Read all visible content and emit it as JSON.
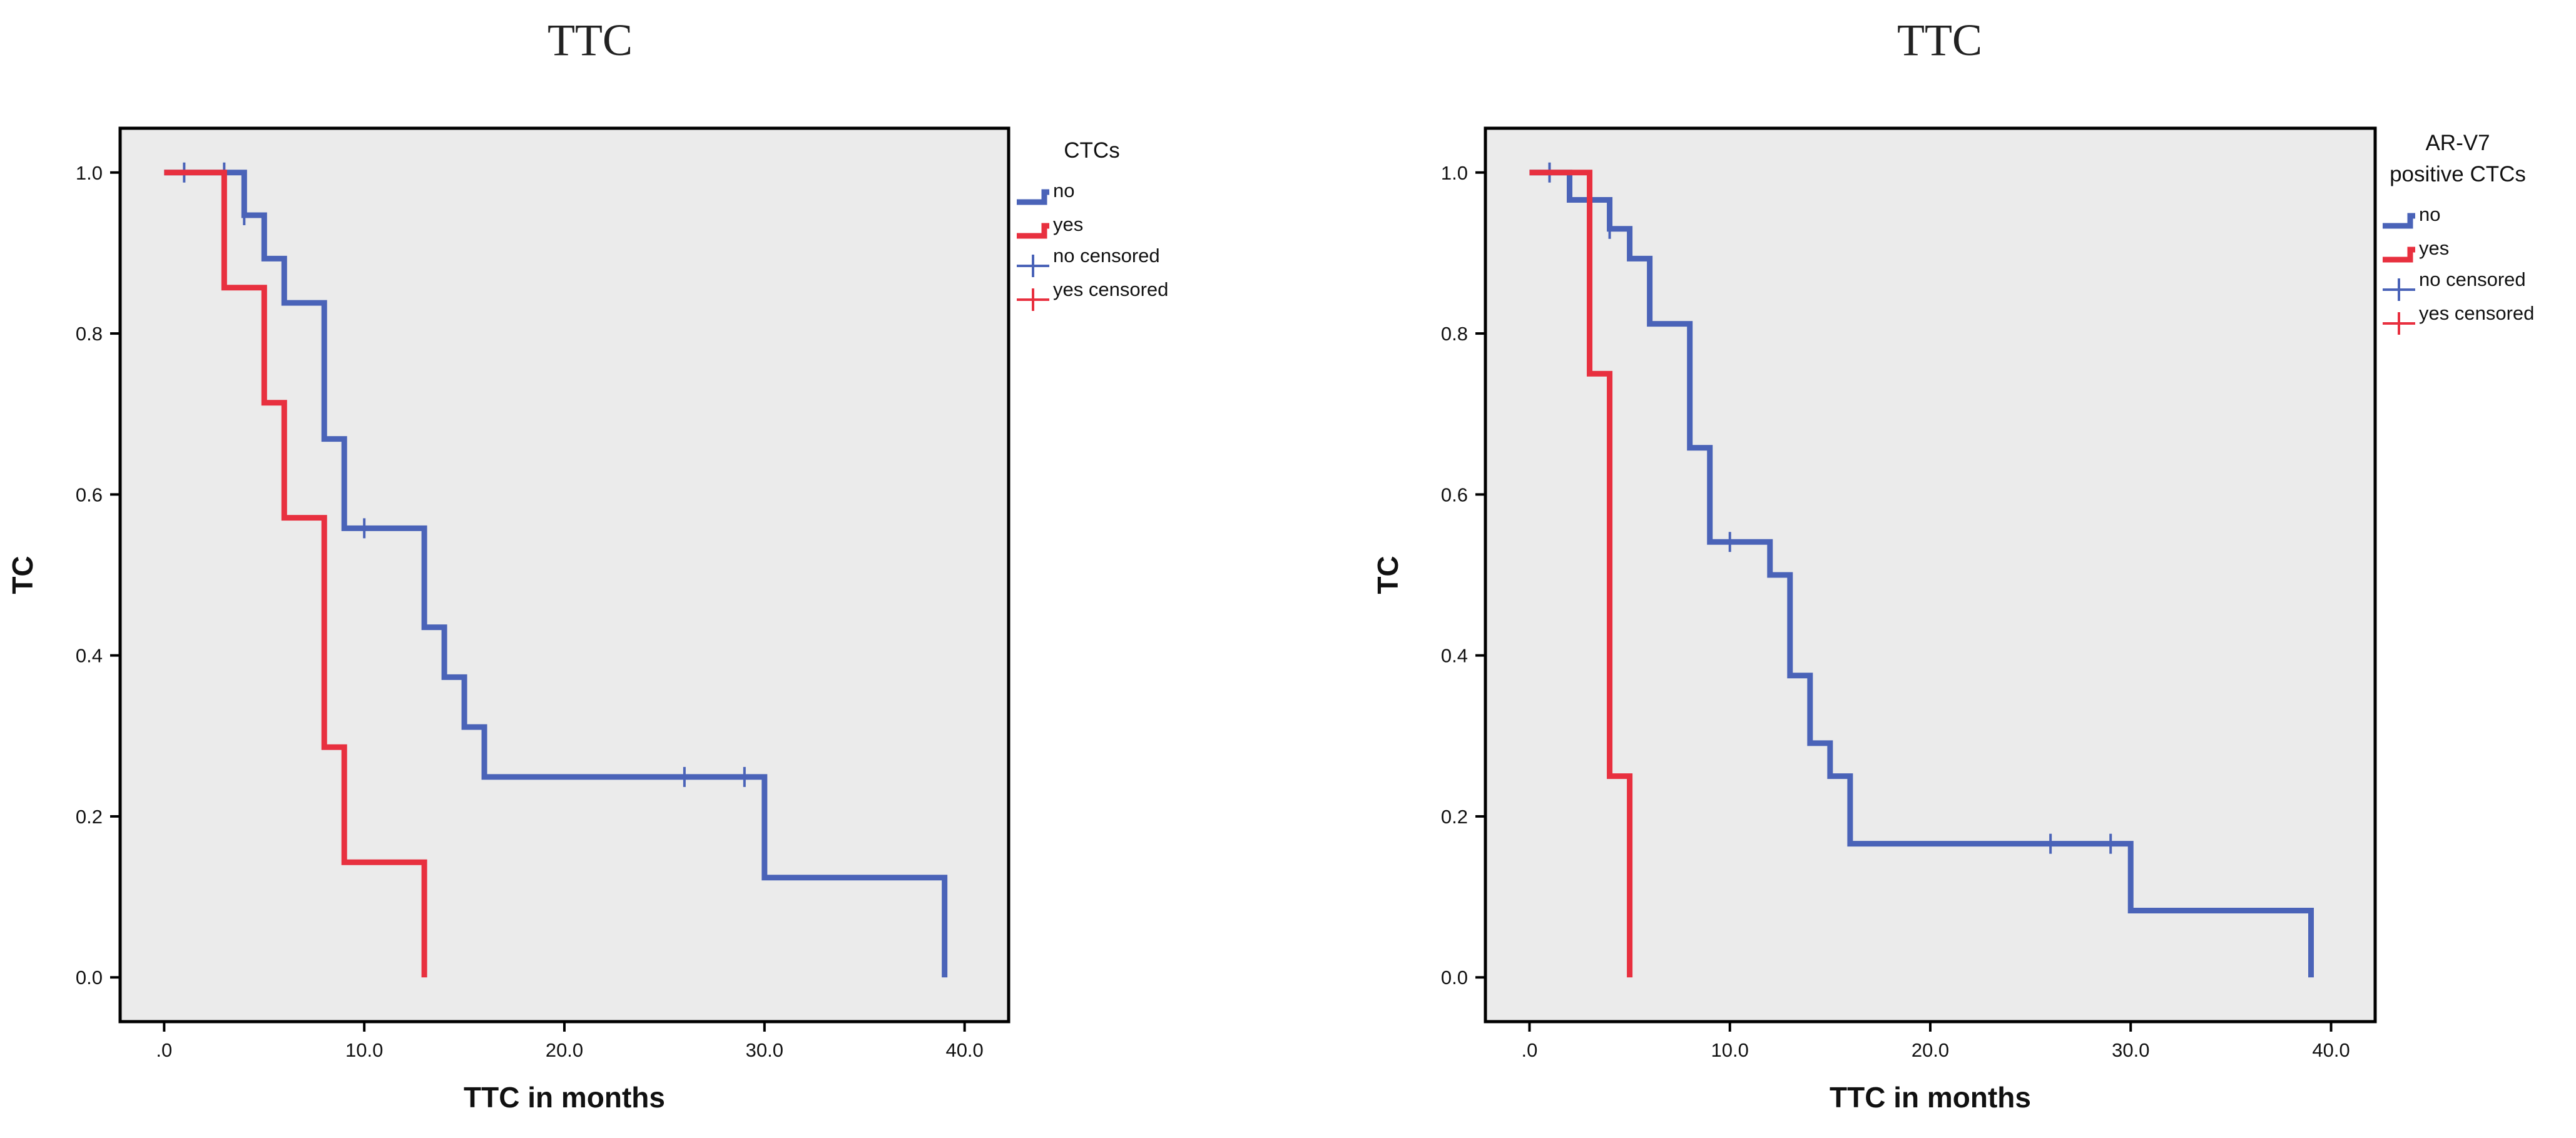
{
  "colors": {
    "no": "#4a63b8",
    "yes": "#e8303f",
    "plot_bg": "#ebebeb",
    "axis": "#000000"
  },
  "chart_data": [
    {
      "type": "line",
      "subtype": "kaplan-meier step",
      "title": "TTC",
      "xlabel": "TTC in months",
      "ylabel": "TC",
      "xlim": [
        -2.2,
        42.2
      ],
      "ylim": [
        -0.055,
        1.055
      ],
      "x_ticks": [
        0,
        10,
        20,
        30,
        40
      ],
      "x_tick_labels": [
        ".0",
        "10.0",
        "20.0",
        "30.0",
        "40.0"
      ],
      "y_ticks": [
        0,
        0.2,
        0.4,
        0.6,
        0.8,
        1.0
      ],
      "y_tick_labels": [
        "0.0",
        "0.2",
        "0.4",
        "0.6",
        "0.8",
        "1.0"
      ],
      "grid": false,
      "legend_title": "CTCs",
      "legend_position": "right outside",
      "legend_entries": [
        "no",
        "yes",
        "no censored",
        "yes censored"
      ],
      "series": [
        {
          "name": "no",
          "color_key": "no",
          "steps": [
            [
              0,
              1.0
            ],
            [
              4,
              0.947
            ],
            [
              5,
              0.893
            ],
            [
              6,
              0.838
            ],
            [
              8,
              0.669
            ],
            [
              9,
              0.558
            ],
            [
              13,
              0.435
            ],
            [
              14,
              0.373
            ],
            [
              15,
              0.311
            ],
            [
              16,
              0.249
            ],
            [
              30,
              0.124
            ],
            [
              39,
              0.0
            ]
          ],
          "censored": [
            [
              1,
              1.0
            ],
            [
              3,
              1.0
            ],
            [
              4,
              0.947
            ],
            [
              10,
              0.558
            ],
            [
              26,
              0.249
            ],
            [
              29,
              0.249
            ]
          ]
        },
        {
          "name": "yes",
          "color_key": "yes",
          "steps": [
            [
              0,
              1.0
            ],
            [
              3,
              0.857
            ],
            [
              5,
              0.714
            ],
            [
              6,
              0.571
            ],
            [
              8,
              0.286
            ],
            [
              9,
              0.143
            ],
            [
              13,
              0.0
            ]
          ],
          "censored": []
        }
      ]
    },
    {
      "type": "line",
      "subtype": "kaplan-meier step",
      "title": "TTC",
      "xlabel": "TTC in months",
      "ylabel": "TC",
      "xlim": [
        -2.2,
        42.2
      ],
      "ylim": [
        -0.055,
        1.055
      ],
      "x_ticks": [
        0,
        10,
        20,
        30,
        40
      ],
      "x_tick_labels": [
        ".0",
        "10.0",
        "20.0",
        "30.0",
        "40.0"
      ],
      "y_ticks": [
        0,
        0.2,
        0.4,
        0.6,
        0.8,
        1.0
      ],
      "y_tick_labels": [
        "0.0",
        "0.2",
        "0.4",
        "0.6",
        "0.8",
        "1.0"
      ],
      "grid": false,
      "legend_title": [
        "AR-V7",
        "positive CTCs"
      ],
      "legend_position": "right outside",
      "legend_entries": [
        "no",
        "yes",
        "no censored",
        "yes censored"
      ],
      "series": [
        {
          "name": "no",
          "color_key": "no",
          "steps": [
            [
              0,
              1.0
            ],
            [
              2,
              0.966
            ],
            [
              4,
              0.93
            ],
            [
              5,
              0.893
            ],
            [
              6,
              0.812
            ],
            [
              8,
              0.658
            ],
            [
              9,
              0.541
            ],
            [
              12,
              0.5
            ],
            [
              13,
              0.375
            ],
            [
              14,
              0.291
            ],
            [
              15,
              0.25
            ],
            [
              16,
              0.166
            ],
            [
              30,
              0.083
            ],
            [
              39,
              0.0
            ]
          ],
          "censored": [
            [
              1,
              1.0
            ],
            [
              4,
              0.93
            ],
            [
              10,
              0.541
            ],
            [
              26,
              0.166
            ],
            [
              29,
              0.166
            ]
          ]
        },
        {
          "name": "yes",
          "color_key": "yes",
          "steps": [
            [
              0,
              1.0
            ],
            [
              3,
              0.75
            ],
            [
              4,
              0.25
            ],
            [
              5,
              0.0
            ]
          ],
          "censored": []
        }
      ]
    }
  ]
}
